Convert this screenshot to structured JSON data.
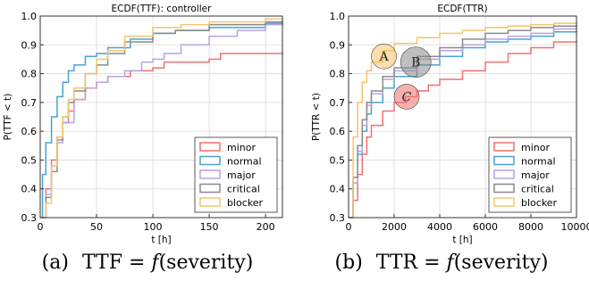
{
  "chart_data": [
    {
      "type": "line",
      "title": "ECDF(TTF): controller",
      "xlabel": "t [h]",
      "ylabel": "P(TTF < t)",
      "xlim": [
        0,
        215
      ],
      "ylim": [
        0.3,
        1.0
      ],
      "xticks": [
        0,
        50,
        100,
        150,
        200
      ],
      "yticks": [
        0.3,
        0.4,
        0.5,
        0.6,
        0.7,
        0.8,
        0.9,
        1.0
      ],
      "xtick_labels": [
        "0",
        "50",
        "100",
        "150",
        "200"
      ],
      "ytick_labels": [
        "0.3",
        "0.4",
        "0.5",
        "0.6",
        "0.7",
        "0.8",
        "0.9",
        "1.0"
      ],
      "grid": true,
      "legend_position": "lower-right",
      "series": [
        {
          "name": "minor",
          "color": "#f07070",
          "x": [
            0,
            5,
            10,
            15,
            20,
            25,
            30,
            40,
            50,
            60,
            70,
            80,
            90,
            100,
            110,
            125,
            150,
            160,
            215
          ],
          "y": [
            0.3,
            0.4,
            0.5,
            0.58,
            0.63,
            0.67,
            0.71,
            0.75,
            0.77,
            0.79,
            0.79,
            0.81,
            0.81,
            0.82,
            0.84,
            0.84,
            0.85,
            0.87,
            0.875
          ]
        },
        {
          "name": "normal",
          "color": "#4aa3d1",
          "x": [
            0,
            2,
            5,
            10,
            15,
            20,
            25,
            30,
            40,
            50,
            60,
            80,
            100,
            120,
            150,
            200,
            215
          ],
          "y": [
            0.3,
            0.45,
            0.56,
            0.65,
            0.72,
            0.77,
            0.81,
            0.83,
            0.86,
            0.87,
            0.89,
            0.92,
            0.94,
            0.95,
            0.96,
            0.975,
            0.98
          ]
        },
        {
          "name": "major",
          "color": "#b9a3e0",
          "x": [
            0,
            5,
            10,
            15,
            20,
            30,
            40,
            50,
            60,
            75,
            90,
            100,
            110,
            125,
            150,
            175,
            200,
            215
          ],
          "y": [
            0.3,
            0.38,
            0.48,
            0.56,
            0.63,
            0.71,
            0.75,
            0.77,
            0.79,
            0.81,
            0.84,
            0.85,
            0.87,
            0.9,
            0.93,
            0.95,
            0.97,
            0.975
          ]
        },
        {
          "name": "critical",
          "color": "#8a8a8a",
          "x": [
            0,
            5,
            10,
            15,
            20,
            25,
            30,
            40,
            50,
            60,
            75,
            100,
            120,
            150,
            200,
            215
          ],
          "y": [
            0.3,
            0.37,
            0.46,
            0.57,
            0.65,
            0.7,
            0.74,
            0.8,
            0.83,
            0.87,
            0.91,
            0.94,
            0.95,
            0.97,
            0.98,
            0.985
          ]
        },
        {
          "name": "blocker",
          "color": "#f5c56a",
          "x": [
            0,
            5,
            10,
            15,
            20,
            25,
            30,
            40,
            50,
            60,
            75,
            100,
            125,
            150,
            200,
            215
          ],
          "y": [
            0.3,
            0.35,
            0.48,
            0.58,
            0.65,
            0.71,
            0.75,
            0.8,
            0.85,
            0.88,
            0.93,
            0.96,
            0.97,
            0.98,
            0.99,
            0.99
          ]
        }
      ]
    },
    {
      "type": "line",
      "title": "ECDF(TTR)",
      "xlabel": "t [h]",
      "ylabel": "P(TTR < t)",
      "xlim": [
        0,
        10000
      ],
      "ylim": [
        0.3,
        1.0
      ],
      "xticks": [
        0,
        2000,
        4000,
        6000,
        8000,
        10000
      ],
      "yticks": [
        0.3,
        0.4,
        0.5,
        0.6,
        0.7,
        0.8,
        0.9,
        1.0
      ],
      "xtick_labels": [
        "0",
        "2000",
        "4000",
        "6000",
        "8000",
        "10000"
      ],
      "ytick_labels": [
        "0.3",
        "0.4",
        "0.5",
        "0.6",
        "0.7",
        "0.8",
        "0.9",
        "1.0"
      ],
      "grid": true,
      "legend_position": "lower-right",
      "annotations": [
        {
          "label": "A",
          "x": 1550,
          "y": 0.86,
          "color": "#f5c56a"
        },
        {
          "label": "B",
          "x": 2950,
          "y": 0.84,
          "color": "#8a8a8a"
        },
        {
          "label": "C",
          "x": 2550,
          "y": 0.72,
          "color": "#f07070"
        }
      ],
      "series": [
        {
          "name": "minor",
          "color": "#f07070",
          "x": [
            0,
            200,
            400,
            600,
            800,
            1000,
            1500,
            2000,
            2500,
            3000,
            3500,
            4000,
            5000,
            6000,
            7000,
            8000,
            9000,
            10000
          ],
          "y": [
            0.3,
            0.36,
            0.45,
            0.52,
            0.58,
            0.62,
            0.67,
            0.7,
            0.72,
            0.74,
            0.76,
            0.78,
            0.81,
            0.84,
            0.87,
            0.89,
            0.91,
            0.915
          ]
        },
        {
          "name": "normal",
          "color": "#4aa3d1",
          "x": [
            0,
            200,
            400,
            600,
            800,
            1000,
            1500,
            2000,
            3000,
            4000,
            5000,
            6000,
            7000,
            8000,
            9000,
            10000
          ],
          "y": [
            0.3,
            0.42,
            0.52,
            0.6,
            0.66,
            0.7,
            0.75,
            0.79,
            0.83,
            0.86,
            0.89,
            0.91,
            0.92,
            0.93,
            0.945,
            0.95
          ]
        },
        {
          "name": "major",
          "color": "#b9a3e0",
          "x": [
            0,
            200,
            400,
            600,
            800,
            1000,
            1500,
            2000,
            3000,
            4000,
            5000,
            6000,
            7000,
            8000,
            9000,
            10000
          ],
          "y": [
            0.3,
            0.42,
            0.53,
            0.62,
            0.69,
            0.73,
            0.78,
            0.81,
            0.85,
            0.88,
            0.9,
            0.92,
            0.93,
            0.94,
            0.955,
            0.96
          ]
        },
        {
          "name": "critical",
          "color": "#8a8a8a",
          "x": [
            0,
            200,
            400,
            600,
            800,
            1000,
            1500,
            2000,
            3000,
            4000,
            5000,
            6000,
            7000,
            8000,
            9000,
            10000
          ],
          "y": [
            0.3,
            0.44,
            0.55,
            0.64,
            0.7,
            0.74,
            0.79,
            0.82,
            0.86,
            0.89,
            0.92,
            0.94,
            0.95,
            0.96,
            0.965,
            0.97
          ]
        },
        {
          "name": "blocker",
          "color": "#f5c56a",
          "x": [
            0,
            200,
            400,
            600,
            800,
            1000,
            1500,
            2000,
            3000,
            4000,
            5000,
            6000,
            7000,
            8000,
            9000,
            10000
          ],
          "y": [
            0.3,
            0.58,
            0.7,
            0.77,
            0.81,
            0.84,
            0.88,
            0.905,
            0.925,
            0.94,
            0.95,
            0.96,
            0.965,
            0.97,
            0.975,
            0.98
          ]
        }
      ]
    }
  ],
  "captions": [
    {
      "label": "(a)",
      "lhs": "TTF",
      "eq": "=",
      "f": "f",
      "arg": "(severity)"
    },
    {
      "label": "(b)",
      "lhs": "TTR",
      "eq": "=",
      "f": "f",
      "arg": "(severity)"
    }
  ]
}
